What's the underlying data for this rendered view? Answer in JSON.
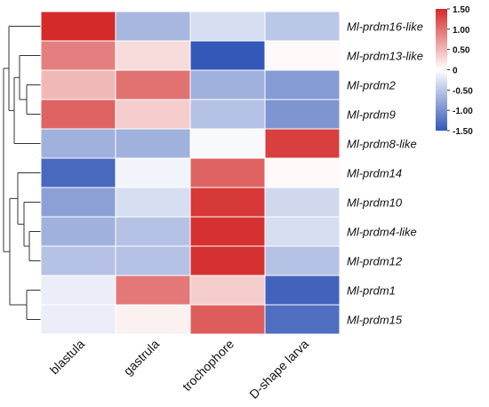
{
  "chart_data": {
    "type": "heatmap",
    "title": "",
    "columns": [
      "blastula",
      "gastrula",
      "trochophore",
      "D-shape larva"
    ],
    "rows": [
      "Ml-prdm16-like",
      "Ml-prdm13-like",
      "Ml-prdm2",
      "Ml-prdm9",
      "Ml-prdm8-like",
      "Ml-prdm14",
      "Ml-prdm10",
      "Ml-prdm4-like",
      "Ml-prdm12",
      "Ml-prdm1",
      "Ml-prdm15"
    ],
    "values": [
      [
        1.5,
        -0.65,
        -0.3,
        -0.5
      ],
      [
        0.9,
        0.25,
        -1.5,
        0.05
      ],
      [
        0.5,
        1.0,
        -0.7,
        -0.9
      ],
      [
        1.1,
        0.35,
        -0.55,
        -0.95
      ],
      [
        -0.7,
        -0.7,
        -0.05,
        1.35
      ],
      [
        -1.35,
        -0.1,
        1.1,
        0.05
      ],
      [
        -0.85,
        -0.3,
        1.4,
        -0.35
      ],
      [
        -0.7,
        -0.55,
        1.45,
        -0.3
      ],
      [
        -0.55,
        -0.55,
        1.45,
        -0.55
      ],
      [
        -0.15,
        0.95,
        0.35,
        -1.4
      ],
      [
        -0.15,
        0.1,
        1.15,
        -1.3
      ]
    ],
    "color_scale": {
      "min": -1.5,
      "max": 1.5,
      "low_color": "#3458b7",
      "mid_color": "#ffffff",
      "high_color": "#d42a2a",
      "ticks": [
        "1.50",
        "1.00",
        "0.50",
        "0",
        "-0.50",
        "-1.00",
        "-1.50"
      ]
    },
    "dendrogram": "rows",
    "legend_position": "right"
  }
}
